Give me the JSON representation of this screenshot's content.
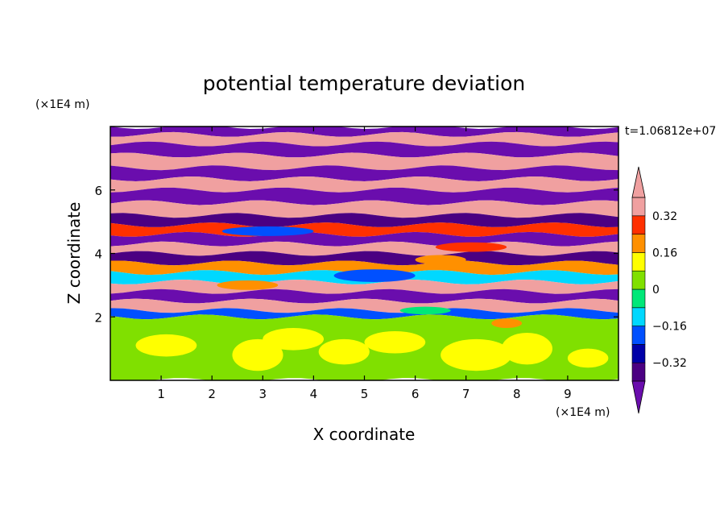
{
  "chart_data": {
    "type": "heatmap",
    "title": "potential temperature deviation",
    "xlabel": "X coordinate",
    "ylabel": "Z coordinate",
    "x_unit": "(×1E4 m)",
    "y_unit": "(×1E4 m)",
    "time_label": "t=1.06812e+07",
    "xlim": [
      0,
      10
    ],
    "ylim": [
      0,
      8
    ],
    "x_ticks": [
      "1",
      "2",
      "3",
      "4",
      "5",
      "6",
      "7",
      "8",
      "9"
    ],
    "y_ticks": [
      "2",
      "4",
      "6"
    ],
    "colorbar": {
      "levels": [
        -0.4,
        -0.32,
        -0.24,
        -0.16,
        -0.08,
        0,
        0.08,
        0.16,
        0.24,
        0.32,
        0.4
      ],
      "tick_labels": [
        "0.32",
        "0.16",
        "0",
        "−0.16",
        "−0.32"
      ],
      "tick_values": [
        0.32,
        0.16,
        0,
        -0.16,
        -0.32
      ],
      "colors": [
        "#6a0dad",
        "#4b0082",
        "#0000a8",
        "#0050ff",
        "#00d8ff",
        "#00e878",
        "#80e000",
        "#ffff00",
        "#ff9000",
        "#ff3000",
        "#f0a0a0"
      ],
      "extend": "both"
    },
    "bands": [
      {
        "z0": 7.75,
        "z1": 8.0,
        "value": -0.45
      },
      {
        "z0": 7.45,
        "z1": 7.75,
        "value": 0.45
      },
      {
        "z0": 7.1,
        "z1": 7.45,
        "value": -0.45
      },
      {
        "z0": 6.7,
        "z1": 7.1,
        "value": 0.45
      },
      {
        "z0": 6.35,
        "z1": 6.7,
        "value": -0.45
      },
      {
        "z0": 6.0,
        "z1": 6.35,
        "value": 0.45
      },
      {
        "z0": 5.6,
        "z1": 6.0,
        "value": -0.45
      },
      {
        "z0": 5.2,
        "z1": 5.6,
        "value": 0.45
      },
      {
        "z0": 4.9,
        "z1": 5.2,
        "value": -0.4
      },
      {
        "z0": 4.6,
        "z1": 4.9,
        "value": 0.3
      },
      {
        "z0": 4.3,
        "z1": 4.6,
        "value": -0.45
      },
      {
        "z0": 4.0,
        "z1": 4.3,
        "value": 0.45
      },
      {
        "z0": 3.7,
        "z1": 4.0,
        "value": -0.35
      },
      {
        "z0": 3.4,
        "z1": 3.7,
        "value": 0.2
      },
      {
        "z0": 3.1,
        "z1": 3.4,
        "value": -0.1
      },
      {
        "z0": 2.8,
        "z1": 3.1,
        "value": 0.45
      },
      {
        "z0": 2.5,
        "z1": 2.8,
        "value": -0.45
      },
      {
        "z0": 2.2,
        "z1": 2.5,
        "value": 0.4
      },
      {
        "z0": 2.0,
        "z1": 2.2,
        "value": -0.2
      },
      {
        "z0": 0.0,
        "z1": 2.0,
        "value": 0.0
      }
    ],
    "patches": [
      {
        "x": 1.1,
        "z": 1.1,
        "rx": 0.6,
        "rz": 0.35,
        "value": 0.08
      },
      {
        "x": 2.9,
        "z": 0.8,
        "rx": 0.5,
        "rz": 0.5,
        "value": 0.08
      },
      {
        "x": 3.6,
        "z": 1.3,
        "rx": 0.6,
        "rz": 0.35,
        "value": 0.08
      },
      {
        "x": 4.6,
        "z": 0.9,
        "rx": 0.5,
        "rz": 0.4,
        "value": 0.08
      },
      {
        "x": 5.6,
        "z": 1.2,
        "rx": 0.6,
        "rz": 0.35,
        "value": 0.08
      },
      {
        "x": 7.2,
        "z": 0.8,
        "rx": 0.7,
        "rz": 0.5,
        "value": 0.08
      },
      {
        "x": 8.2,
        "z": 1.0,
        "rx": 0.5,
        "rz": 0.5,
        "value": 0.08
      },
      {
        "x": 9.4,
        "z": 0.7,
        "rx": 0.4,
        "rz": 0.3,
        "value": 0.08
      },
      {
        "x": 7.8,
        "z": 1.8,
        "rx": 0.3,
        "rz": 0.15,
        "value": 0.16
      },
      {
        "x": 6.2,
        "z": 2.2,
        "rx": 0.5,
        "rz": 0.12,
        "value": -0.08
      },
      {
        "x": 5.2,
        "z": 3.3,
        "rx": 0.8,
        "rz": 0.2,
        "value": -0.2
      },
      {
        "x": 2.7,
        "z": 3.0,
        "rx": 0.6,
        "rz": 0.15,
        "value": 0.16
      },
      {
        "x": 7.1,
        "z": 4.2,
        "rx": 0.7,
        "rz": 0.15,
        "value": 0.3
      },
      {
        "x": 3.1,
        "z": 4.7,
        "rx": 0.9,
        "rz": 0.15,
        "value": -0.2
      },
      {
        "x": 6.5,
        "z": 3.8,
        "rx": 0.5,
        "rz": 0.15,
        "value": 0.16
      }
    ]
  }
}
